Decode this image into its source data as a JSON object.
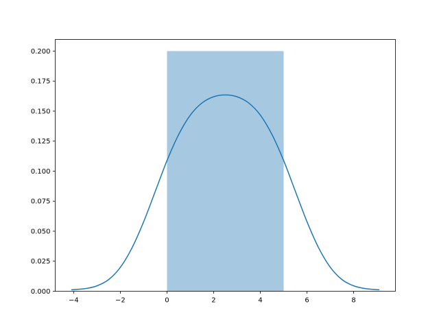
{
  "chart_data": {
    "type": "histogram+kde",
    "title": "",
    "xlabel": "",
    "ylabel": "",
    "xlim": [
      -4.79,
      9.79
    ],
    "ylim": [
      0,
      0.2097
    ],
    "grid": false,
    "x_ticks": [
      "−4",
      "−2",
      "0",
      "2",
      "4",
      "6",
      "8"
    ],
    "x_tick_values": [
      -4,
      -2,
      0,
      2,
      4,
      6,
      8
    ],
    "y_ticks": [
      "0.000",
      "0.025",
      "0.050",
      "0.075",
      "0.100",
      "0.125",
      "0.150",
      "0.175",
      "0.200"
    ],
    "y_tick_values": [
      0,
      0.025,
      0.05,
      0.075,
      0.1,
      0.125,
      0.15,
      0.175,
      0.2
    ],
    "bars": [
      {
        "x0": 0,
        "x1": 5,
        "density": 0.2
      }
    ],
    "kde": {
      "x": [
        -4.1,
        -3.5,
        -3,
        -2.5,
        -2,
        -1.5,
        -1,
        -0.5,
        0,
        0.5,
        1,
        1.5,
        2,
        2.5,
        3,
        3.5,
        4,
        4.5,
        5,
        5.5,
        6,
        6.5,
        7,
        7.5,
        8,
        8.5,
        9.1
      ],
      "y": [
        0.0012,
        0.0022,
        0.0045,
        0.0097,
        0.0199,
        0.0361,
        0.0579,
        0.0833,
        0.1088,
        0.1305,
        0.1467,
        0.1568,
        0.162,
        0.1635,
        0.162,
        0.1568,
        0.1467,
        0.1305,
        0.1088,
        0.0833,
        0.0579,
        0.0361,
        0.0199,
        0.0097,
        0.0045,
        0.0022,
        0.0012
      ]
    },
    "colors": {
      "bar": "#a6c8e0",
      "line": "#1f77b4"
    }
  }
}
